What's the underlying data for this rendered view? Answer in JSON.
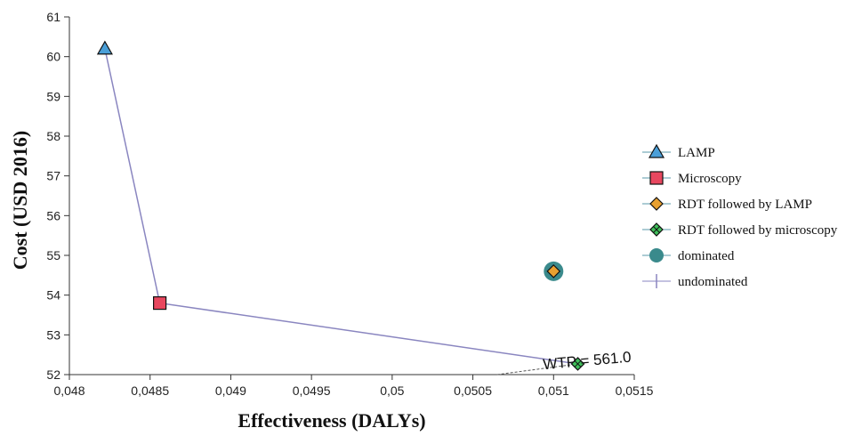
{
  "chart_data": {
    "type": "scatter",
    "title": "",
    "xlabel": "Effectiveness (DALYs)",
    "ylabel": "Cost (USD 2016)",
    "xlim": [
      0.048,
      0.0515
    ],
    "ylim": [
      52,
      61
    ],
    "x_ticks": [
      "0,048",
      "0,0485",
      "0,049",
      "0,0495",
      "0,05",
      "0,0505",
      "0,051",
      "0,0515"
    ],
    "y_ticks": [
      "52",
      "53",
      "54",
      "55",
      "56",
      "57",
      "58",
      "59",
      "60",
      "61"
    ],
    "grid": false,
    "legend_position": "right",
    "series": [
      {
        "name": "LAMP",
        "marker": "triangle",
        "color": "#4a9fd8",
        "x": 0.04822,
        "y": 60.2
      },
      {
        "name": "Microscopy",
        "marker": "square",
        "color": "#e8475f",
        "x": 0.04856,
        "y": 53.8
      },
      {
        "name": "RDT followed by LAMP",
        "marker": "diamond",
        "color": "#e8a030",
        "x": 0.051,
        "y": 54.6
      },
      {
        "name": "RDT followed by microscopy",
        "marker": "diamond-cross",
        "color": "#3fbf5a",
        "x": 0.05115,
        "y": 52.27
      },
      {
        "name": "dominated",
        "marker": "circle",
        "color": "#3a8a8c"
      },
      {
        "name": "undominated",
        "marker": "plus",
        "color": "#8a86c0"
      }
    ],
    "frontier": [
      {
        "x": 0.04822,
        "y": 60.2
      },
      {
        "x": 0.04856,
        "y": 53.8
      },
      {
        "x": 0.05115,
        "y": 52.27
      }
    ],
    "dominated_points": [
      {
        "x": 0.051,
        "y": 54.6
      }
    ],
    "wtp_line": {
      "x1": 0.05065,
      "y1": 52.0,
      "x2": 0.05115,
      "y2": 52.27
    },
    "annotation": "WTP = 561.0"
  }
}
